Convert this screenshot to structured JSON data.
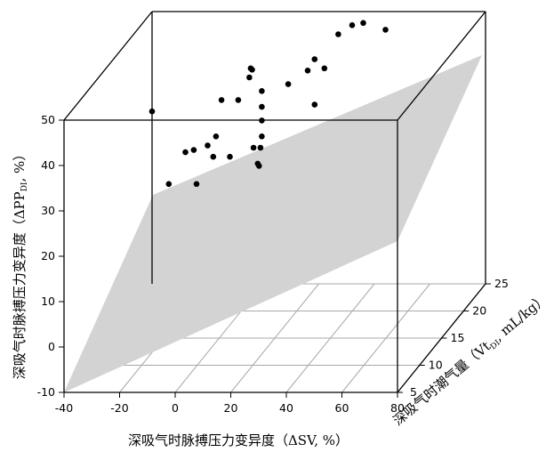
{
  "chart_data": {
    "type": "scatter",
    "title": "",
    "xlabel": "深吸气时脉搏压力变异度（ΔSV, %）",
    "ylabel": {
      "pre": "深吸气时脉搏压力变异度（ΔPP",
      "sub": "DI",
      "post": ", %）"
    },
    "depthlabel": {
      "pre": "深吸气时潮气量（Vt",
      "sub": "DI",
      "post": ", mL/kg）"
    },
    "xlim": [
      -40,
      80
    ],
    "ylim": [
      -10,
      50
    ],
    "zlim": [
      5,
      25
    ],
    "x_ticks": [
      "-40",
      "-20",
      "0",
      "20",
      "40",
      "60",
      "80"
    ],
    "y_ticks": [
      "-10",
      "0",
      "10",
      "20",
      "30",
      "40",
      "50"
    ],
    "z_ticks": [
      "5",
      "10",
      "15",
      "20",
      "25"
    ],
    "grid": true,
    "regression_plane": true,
    "points": [
      {
        "x": -40,
        "y": 28,
        "z": 25
      },
      {
        "x": -34,
        "y": 12,
        "z": 25
      },
      {
        "x": -28,
        "y": 19,
        "z": 25
      },
      {
        "x": -25,
        "y": 19.5,
        "z": 25
      },
      {
        "x": -24,
        "y": 12,
        "z": 25
      },
      {
        "x": -20,
        "y": 20.5,
        "z": 25
      },
      {
        "x": -18,
        "y": 18,
        "z": 25
      },
      {
        "x": -17,
        "y": 22.5,
        "z": 25
      },
      {
        "x": -15,
        "y": 30.5,
        "z": 25
      },
      {
        "x": -12,
        "y": 18,
        "z": 25
      },
      {
        "x": -9,
        "y": 30.5,
        "z": 25
      },
      {
        "x": -5,
        "y": 35.5,
        "z": 25
      },
      {
        "x": -4.5,
        "y": 37.5,
        "z": 25
      },
      {
        "x": -4,
        "y": 37.2,
        "z": 25
      },
      {
        "x": -3.5,
        "y": 20,
        "z": 25
      },
      {
        "x": -2,
        "y": 16.5,
        "z": 25
      },
      {
        "x": -1.5,
        "y": 16,
        "z": 25
      },
      {
        "x": -1,
        "y": 20,
        "z": 25
      },
      {
        "x": -0.5,
        "y": 32.5,
        "z": 25
      },
      {
        "x": -0.5,
        "y": 29,
        "z": 25
      },
      {
        "x": -0.5,
        "y": 26,
        "z": 25
      },
      {
        "x": -0.5,
        "y": 22.5,
        "z": 25
      },
      {
        "x": 9,
        "y": 34,
        "z": 25
      },
      {
        "x": 16,
        "y": 37,
        "z": 25
      },
      {
        "x": 18.5,
        "y": 29.5,
        "z": 25
      },
      {
        "x": 18.5,
        "y": 39.5,
        "z": 25
      },
      {
        "x": 22,
        "y": 37.5,
        "z": 25
      },
      {
        "x": 27,
        "y": 45,
        "z": 25
      },
      {
        "x": 32,
        "y": 47,
        "z": 25
      },
      {
        "x": 36,
        "y": 47.5,
        "z": 25
      },
      {
        "x": 44,
        "y": 46,
        "z": 25
      }
    ]
  }
}
